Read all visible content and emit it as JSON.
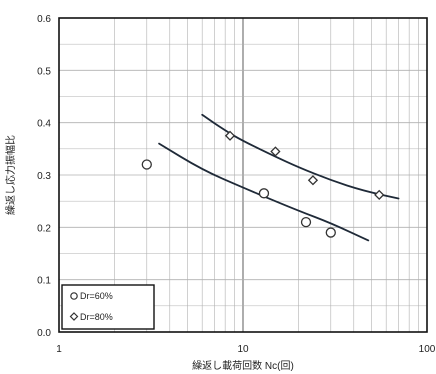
{
  "chart_data": {
    "type": "scatter",
    "title": "",
    "xlabel": "繰返し載荷回数 Nc(回)",
    "ylabel": "繰返し応力振幅比",
    "xscale": "log",
    "xlim": [
      1,
      100
    ],
    "ylim": [
      0.0,
      0.6
    ],
    "x_tick_labels": [
      "1",
      "10",
      "100"
    ],
    "y_tick_labels": [
      "0.0",
      "0.1",
      "0.2",
      "0.3",
      "0.4",
      "0.5",
      "0.6"
    ],
    "grid": true,
    "legend_position": "bottom-left",
    "series": [
      {
        "name": "Dr=60%",
        "marker": "circle",
        "points": [
          [
            3,
            0.32
          ],
          [
            13,
            0.265
          ],
          [
            22,
            0.21
          ],
          [
            30,
            0.19
          ]
        ],
        "trend": [
          [
            3.5,
            0.36
          ],
          [
            6,
            0.31
          ],
          [
            10,
            0.276
          ],
          [
            15,
            0.25
          ],
          [
            20,
            0.232
          ],
          [
            30,
            0.208
          ],
          [
            48,
            0.175
          ]
        ]
      },
      {
        "name": "Dr=80%",
        "marker": "diamond",
        "points": [
          [
            8.5,
            0.375
          ],
          [
            15,
            0.345
          ],
          [
            24,
            0.29
          ],
          [
            55,
            0.262
          ]
        ],
        "trend": [
          [
            6,
            0.415
          ],
          [
            8,
            0.385
          ],
          [
            10,
            0.365
          ],
          [
            15,
            0.335
          ],
          [
            20,
            0.315
          ],
          [
            30,
            0.29
          ],
          [
            45,
            0.27
          ],
          [
            70,
            0.255
          ]
        ]
      }
    ],
    "colors": {
      "axis": "#111111",
      "grid": "#b0b0b0",
      "major_grid": "#777777",
      "marker": "#333333",
      "trend": "#1f2a38"
    }
  }
}
